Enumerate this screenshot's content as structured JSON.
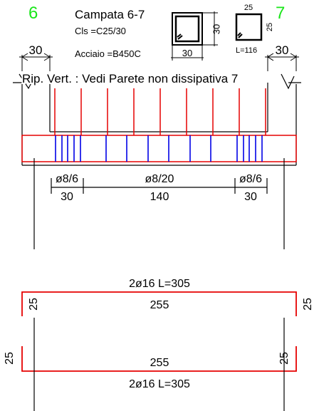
{
  "header": {
    "support_left": "6",
    "support_right": "7",
    "span_title": "Campata 6-7",
    "concrete": "Cls =C25/30",
    "steel": "Acciaio =B450C"
  },
  "section": {
    "height": "30",
    "width": "30"
  },
  "stirrup": {
    "top": "25",
    "side": "25",
    "length": "L=116"
  },
  "supports": {
    "left_width": "30",
    "right_width": "30"
  },
  "note": "Rip. Vert. : Vedi Parete non dissipativa 7",
  "stirrup_zones": [
    {
      "spacing": "ø8/6",
      "length": "30"
    },
    {
      "spacing": "ø8/20",
      "length": "140"
    },
    {
      "spacing": "ø8/6",
      "length": "30"
    }
  ],
  "bars": {
    "top": {
      "label": "2ø16 L=305",
      "length": "255",
      "hook_left": "25",
      "hook_right": "25"
    },
    "bottom": {
      "label": "2ø16 L=305",
      "length": "255",
      "hook_left": "25",
      "hook_right": "25"
    }
  },
  "colors": {
    "rebar": "#e60000",
    "stirrup": "#0000e6",
    "support_label": "#19e619",
    "line": "#000000"
  }
}
